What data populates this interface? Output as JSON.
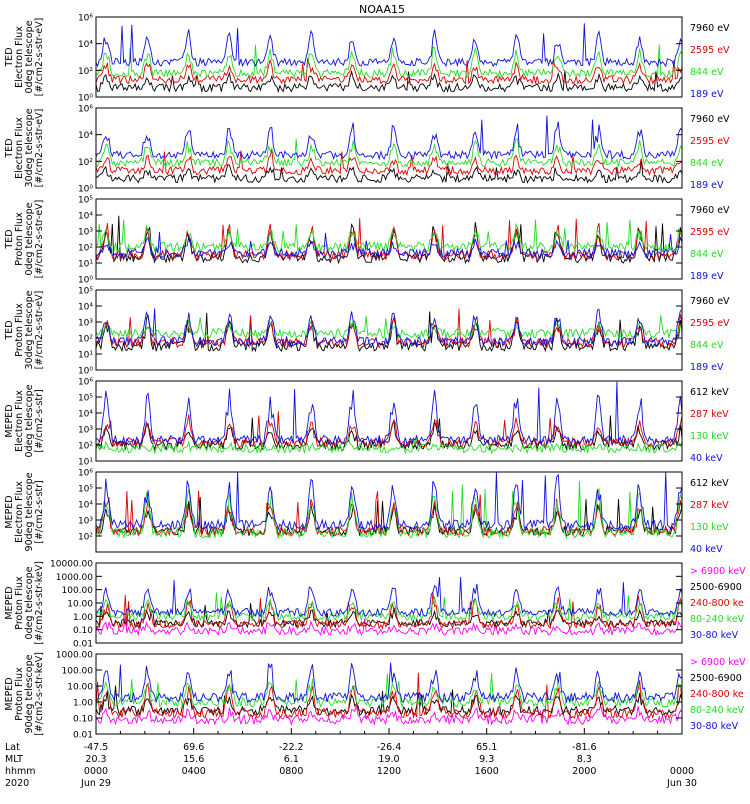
{
  "title": "NOAA15",
  "colors": {
    "black": "#000000",
    "red": "#e00000",
    "green": "#22dd22",
    "blue": "#1010e0",
    "magenta": "#ff00ff"
  },
  "chart_data": [
    {
      "type": "line",
      "ylabel": [
        "TED",
        "Electron Flux",
        "0deg telescope",
        "[#/cm2-s-str-eV]"
      ],
      "yscale": "log",
      "ylim": [
        1,
        1000000
      ],
      "yticks": [
        {
          "v": 1,
          "t": "10⁰"
        },
        {
          "v": 100,
          "t": "10²"
        },
        {
          "v": 10000,
          "t": "10⁴"
        },
        {
          "v": 1000000,
          "t": "10⁶"
        }
      ],
      "legend": [
        {
          "label": "7960 eV",
          "color": "black"
        },
        {
          "label": "2595 eV",
          "color": "red"
        },
        {
          "label": "844 eV",
          "color": "green"
        },
        {
          "label": "189 eV",
          "color": "blue"
        }
      ],
      "series": [
        {
          "name": "7960 eV",
          "color": "black",
          "base": 5,
          "peak": 50
        },
        {
          "name": "2595 eV",
          "color": "red",
          "base": 20,
          "peak": 400
        },
        {
          "name": "844 eV",
          "color": "green",
          "base": 60,
          "peak": 5000
        },
        {
          "name": "189 eV",
          "color": "blue",
          "base": 400,
          "peak": 100000
        }
      ]
    },
    {
      "type": "line",
      "ylabel": [
        "TED",
        "Electron Flux",
        "30deg telescope",
        "[#/cm2-s-str-eV]"
      ],
      "yscale": "log",
      "ylim": [
        1,
        1000000
      ],
      "yticks": [
        {
          "v": 1,
          "t": "10⁰"
        },
        {
          "v": 100,
          "t": "10²"
        },
        {
          "v": 10000,
          "t": "10⁴"
        },
        {
          "v": 1000000,
          "t": "10⁶"
        }
      ],
      "legend": [
        {
          "label": "7960 eV",
          "color": "black"
        },
        {
          "label": "2595 eV",
          "color": "red"
        },
        {
          "label": "844 eV",
          "color": "green"
        },
        {
          "label": "189 eV",
          "color": "blue"
        }
      ],
      "series": [
        {
          "name": "7960 eV",
          "color": "black",
          "base": 5,
          "peak": 40
        },
        {
          "name": "2595 eV",
          "color": "red",
          "base": 20,
          "peak": 300
        },
        {
          "name": "844 eV",
          "color": "green",
          "base": 80,
          "peak": 4000
        },
        {
          "name": "189 eV",
          "color": "blue",
          "base": 300,
          "peak": 80000
        }
      ]
    },
    {
      "type": "line",
      "ylabel": [
        "TED",
        "Proton Flux",
        "0deg telescope",
        "[#/cm2-s-str-eV]"
      ],
      "yscale": "log",
      "ylim": [
        1,
        100000
      ],
      "yticks": [
        {
          "v": 1,
          "t": "10⁰"
        },
        {
          "v": 10,
          "t": "10¹"
        },
        {
          "v": 100,
          "t": "10²"
        },
        {
          "v": 1000,
          "t": "10³"
        },
        {
          "v": 10000,
          "t": "10⁴"
        },
        {
          "v": 100000,
          "t": "10⁵"
        }
      ],
      "legend": [
        {
          "label": "7960 eV",
          "color": "black"
        },
        {
          "label": "2595 eV",
          "color": "red"
        },
        {
          "label": "844 eV",
          "color": "green"
        },
        {
          "label": "189 eV",
          "color": "blue"
        }
      ],
      "series": [
        {
          "name": "7960 eV",
          "color": "black",
          "base": 20,
          "peak": 3000
        },
        {
          "name": "2595 eV",
          "color": "red",
          "base": 30,
          "peak": 3000
        },
        {
          "name": "844 eV",
          "color": "green",
          "base": 100,
          "peak": 1500
        },
        {
          "name": "189 eV",
          "color": "blue",
          "base": 40,
          "peak": 300
        }
      ]
    },
    {
      "type": "line",
      "ylabel": [
        "TED",
        "Proton Flux",
        "30deg telescope",
        "[#/cm2-s-str-eV]"
      ],
      "yscale": "log",
      "ylim": [
        1,
        100000
      ],
      "yticks": [
        {
          "v": 1,
          "t": "10⁰"
        },
        {
          "v": 10,
          "t": "10¹"
        },
        {
          "v": 100,
          "t": "10²"
        },
        {
          "v": 1000,
          "t": "10³"
        },
        {
          "v": 10000,
          "t": "10⁴"
        },
        {
          "v": 100000,
          "t": "10⁵"
        }
      ],
      "legend": [
        {
          "label": "7960 eV",
          "color": "black"
        },
        {
          "label": "2595 eV",
          "color": "red"
        },
        {
          "label": "844 eV",
          "color": "green"
        },
        {
          "label": "189 eV",
          "color": "blue"
        }
      ],
      "series": [
        {
          "name": "7960 eV",
          "color": "black",
          "base": 30,
          "peak": 2000
        },
        {
          "name": "2595 eV",
          "color": "red",
          "base": 50,
          "peak": 2000
        },
        {
          "name": "844 eV",
          "color": "green",
          "base": 200,
          "peak": 800
        },
        {
          "name": "189 eV",
          "color": "blue",
          "base": 60,
          "peak": 8000
        }
      ]
    },
    {
      "type": "line",
      "ylabel": [
        "MEPED",
        "Electron Flux",
        "0deg telescope",
        "[#/cm2-s-str]"
      ],
      "yscale": "log",
      "ylim": [
        10,
        1000000
      ],
      "yticks": [
        {
          "v": 10,
          "t": "10¹"
        },
        {
          "v": 100,
          "t": "10²"
        },
        {
          "v": 1000,
          "t": "10³"
        },
        {
          "v": 10000,
          "t": "10⁴"
        },
        {
          "v": 100000,
          "t": "10⁵"
        },
        {
          "v": 1000000,
          "t": "10⁶"
        }
      ],
      "legend": [
        {
          "label": "612 keV",
          "color": "black"
        },
        {
          "label": "287 keV",
          "color": "red"
        },
        {
          "label": "130 keV",
          "color": "green"
        },
        {
          "label": "40 keV",
          "color": "blue"
        }
      ],
      "series": [
        {
          "name": "612 keV",
          "color": "black",
          "base": 100,
          "peak": 2000
        },
        {
          "name": "287 keV",
          "color": "red",
          "base": 150,
          "peak": 5000
        },
        {
          "name": "130 keV",
          "color": "green",
          "base": 60,
          "peak": 100
        },
        {
          "name": "40 keV",
          "color": "blue",
          "base": 200,
          "peak": 300000
        }
      ]
    },
    {
      "type": "line",
      "ylabel": [
        "MEPED",
        "Electron Flux",
        "90deg telescope",
        "[#/cm2-s-str]"
      ],
      "yscale": "log",
      "ylim": [
        10,
        1000000
      ],
      "yticks": [
        {
          "v": 100,
          "t": "10²"
        },
        {
          "v": 1000,
          "t": "10³"
        },
        {
          "v": 10000,
          "t": "10⁴"
        },
        {
          "v": 100000,
          "t": "10⁵"
        },
        {
          "v": 1000000,
          "t": "10⁶"
        }
      ],
      "legend": [
        {
          "label": "612 keV",
          "color": "black"
        },
        {
          "label": "287 keV",
          "color": "red"
        },
        {
          "label": "130 keV",
          "color": "green"
        },
        {
          "label": "40 keV",
          "color": "blue"
        }
      ],
      "series": [
        {
          "name": "612 keV",
          "color": "black",
          "base": 200,
          "peak": 10000
        },
        {
          "name": "287 keV",
          "color": "red",
          "base": 200,
          "peak": 20000
        },
        {
          "name": "130 keV",
          "color": "green",
          "base": 150,
          "peak": 100000
        },
        {
          "name": "40 keV",
          "color": "blue",
          "base": 500,
          "peak": 500000
        }
      ]
    },
    {
      "type": "line",
      "ylabel": [
        "MEPED",
        "Proton Flux",
        "0deg telescope",
        "[#/cm2-s-str-keV]"
      ],
      "yscale": "log",
      "ylim": [
        0.01,
        10000
      ],
      "yticks": [
        {
          "v": 0.01,
          "t": "0.01"
        },
        {
          "v": 0.1,
          "t": "0.10"
        },
        {
          "v": 1,
          "t": "1.00"
        },
        {
          "v": 10,
          "t": "10.00"
        },
        {
          "v": 100,
          "t": "100.00"
        },
        {
          "v": 1000,
          "t": "1000.00"
        },
        {
          "v": 10000,
          "t": "10000.00"
        }
      ],
      "legend": [
        {
          "label": "> 6900 keV",
          "color": "magenta"
        },
        {
          "label": "2500-6900",
          "color": "black"
        },
        {
          "label": "240-800 ke",
          "color": "red"
        },
        {
          "label": "80-240 keV",
          "color": "green"
        },
        {
          "label": "30-80 keV",
          "color": "blue"
        }
      ],
      "series": [
        {
          "name": "> 6900 keV",
          "color": "magenta",
          "base": 0.08,
          "peak": 0.3
        },
        {
          "name": "2500-6900",
          "color": "black",
          "base": 0.3,
          "peak": 3
        },
        {
          "name": "240-800 ke",
          "color": "red",
          "base": 0.25,
          "peak": 20
        },
        {
          "name": "80-240 keV",
          "color": "green",
          "base": 1,
          "peak": 20
        },
        {
          "name": "30-80 keV",
          "color": "blue",
          "base": 2,
          "peak": 500
        }
      ]
    },
    {
      "type": "line",
      "ylabel": [
        "MEPED",
        "Proton Flux",
        "90deg telescope",
        "[#/cm2-s-str-keV]"
      ],
      "yscale": "log",
      "ylim": [
        0.01,
        1000
      ],
      "yticks": [
        {
          "v": 0.01,
          "t": "0.01"
        },
        {
          "v": 0.1,
          "t": "0.10"
        },
        {
          "v": 1,
          "t": "1.00"
        },
        {
          "v": 10,
          "t": "10.00"
        },
        {
          "v": 100,
          "t": "100.00"
        },
        {
          "v": 1000,
          "t": "1000.00"
        }
      ],
      "legend": [
        {
          "label": "> 6900 keV",
          "color": "magenta"
        },
        {
          "label": "2500-6900",
          "color": "black"
        },
        {
          "label": "240-800 ke",
          "color": "red"
        },
        {
          "label": "80-240 keV",
          "color": "green"
        },
        {
          "label": "30-80 keV",
          "color": "blue"
        }
      ],
      "series": [
        {
          "name": "> 6900 keV",
          "color": "magenta",
          "base": 0.08,
          "peak": 0.3
        },
        {
          "name": "2500-6900",
          "color": "black",
          "base": 0.3,
          "peak": 3
        },
        {
          "name": "240-800 ke",
          "color": "red",
          "base": 0.2,
          "peak": 20
        },
        {
          "name": "80-240 keV",
          "color": "green",
          "base": 1,
          "peak": 20
        },
        {
          "name": "30-80 keV",
          "color": "blue",
          "base": 2,
          "peak": 300
        }
      ]
    }
  ],
  "time_axis": {
    "row_labels": [
      "Lat",
      "MLT",
      "hhmm",
      "2020"
    ],
    "ticks": [
      {
        "x": 0.0,
        "lat": "-47.5",
        "mlt": "20.3",
        "hhmm": "0000",
        "date": "Jun 29"
      },
      {
        "x": 0.1667,
        "lat": "69.6",
        "mlt": "15.6",
        "hhmm": "0400",
        "date": ""
      },
      {
        "x": 0.3333,
        "lat": "-22.2",
        "mlt": "6.1",
        "hhmm": "0800",
        "date": ""
      },
      {
        "x": 0.5,
        "lat": "-26.4",
        "mlt": "19.0",
        "hhmm": "1200",
        "date": ""
      },
      {
        "x": 0.6667,
        "lat": "65.1",
        "mlt": "9.3",
        "hhmm": "1600",
        "date": ""
      },
      {
        "x": 0.8333,
        "lat": "-81.6",
        "mlt": "8.3",
        "hhmm": "2000",
        "date": ""
      },
      {
        "x": 1.0,
        "lat": "",
        "mlt": "",
        "hhmm": "0000",
        "date": "Jun 30"
      }
    ],
    "xlim": [
      0,
      24
    ],
    "xunit": "hours since 2020-06-29 00:00"
  }
}
